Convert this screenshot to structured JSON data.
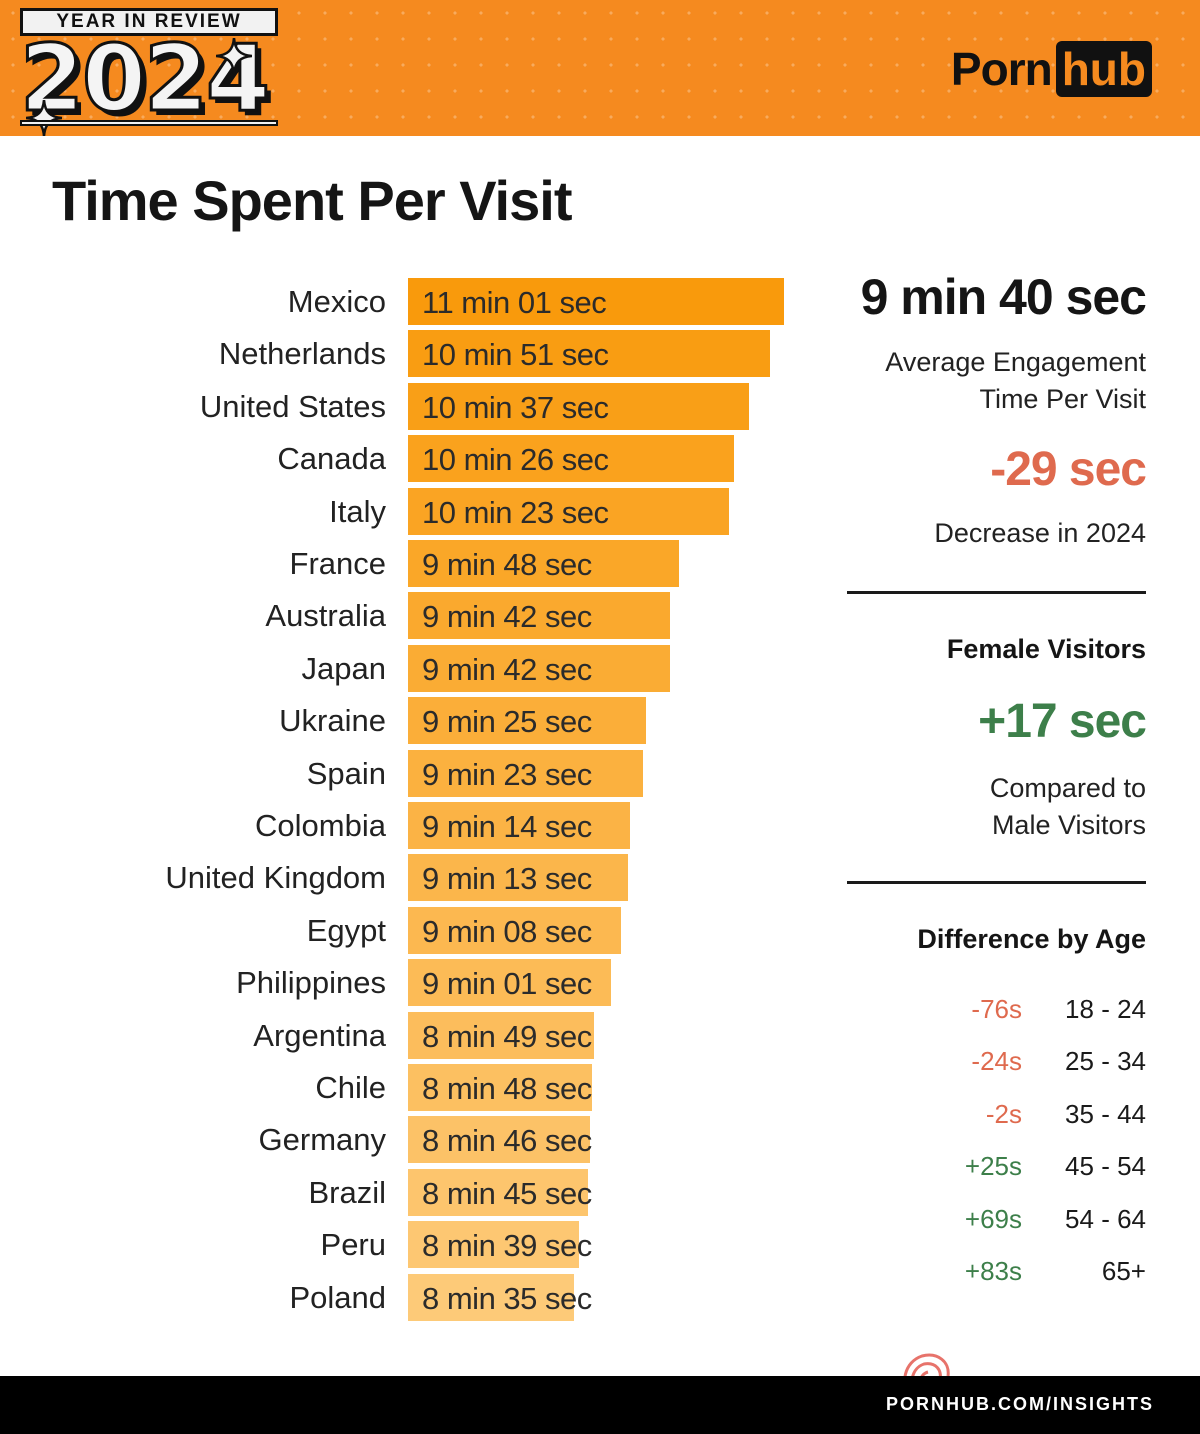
{
  "header": {
    "badge_label": "YEAR IN REVIEW",
    "badge_year": "2024",
    "brand_part1": "Porn",
    "brand_part2": "hub",
    "bg_color": "#f58a1f"
  },
  "title": "Time Spent Per Visit",
  "chart_data": {
    "type": "bar",
    "orientation": "horizontal",
    "unit": "seconds",
    "categories": [
      "Mexico",
      "Netherlands",
      "United States",
      "Canada",
      "Italy",
      "France",
      "Australia",
      "Japan",
      "Ukraine",
      "Spain",
      "Colombia",
      "United Kingdom",
      "Egypt",
      "Philippines",
      "Argentina",
      "Chile",
      "Germany",
      "Brazil",
      "Peru",
      "Poland"
    ],
    "values": [
      661,
      651,
      637,
      626,
      623,
      588,
      582,
      582,
      565,
      563,
      554,
      553,
      548,
      541,
      529,
      528,
      526,
      525,
      519,
      515
    ],
    "value_labels": [
      "11 min 01 sec",
      "10 min 51 sec",
      "10 min 37 sec",
      "10 min 26 sec",
      "10 min 23 sec",
      "9 min 48 sec",
      "9 min 42 sec",
      "9 min 42 sec",
      "9 min 25 sec",
      "9 min 23 sec",
      "9 min 14 sec",
      "9 min 13 sec",
      "9 min 08 sec",
      "9 min 01 sec",
      "8 min 49 sec",
      "8 min 48 sec",
      "8 min 46 sec",
      "8 min 45 sec",
      "8 min 39 sec",
      "8 min 35 sec"
    ],
    "title": "Time Spent Per Visit",
    "xlabel": "",
    "ylabel": "",
    "grid": false,
    "color_top": "#f99a0c",
    "color_bottom": "#fdca78"
  },
  "summary": {
    "avg_value": "9 min 40 sec",
    "avg_caption_line1": "Average Engagement",
    "avg_caption_line2": "Time Per Visit",
    "change_value": "-29 sec",
    "change_caption": "Decrease in 2024",
    "negative_color": "#df6a4e",
    "positive_color": "#3d7f4a"
  },
  "female": {
    "title": "Female Visitors",
    "value": "+17 sec",
    "caption_line1": "Compared to",
    "caption_line2": "Male Visitors"
  },
  "age": {
    "title": "Difference by Age",
    "rows": [
      {
        "diff": "-76s",
        "range": "18 - 24",
        "sign": "neg"
      },
      {
        "diff": "-24s",
        "range": "25 - 34",
        "sign": "neg"
      },
      {
        "diff": "-2s",
        "range": "35 - 44",
        "sign": "neg"
      },
      {
        "diff": "+25s",
        "range": "45 - 54",
        "sign": "pos"
      },
      {
        "diff": "+69s",
        "range": "54 - 64",
        "sign": "pos"
      },
      {
        "diff": "+83s",
        "range": "65+",
        "sign": "pos"
      }
    ]
  },
  "footer": {
    "url": "PORNHUB.COM/INSIGHTS"
  }
}
